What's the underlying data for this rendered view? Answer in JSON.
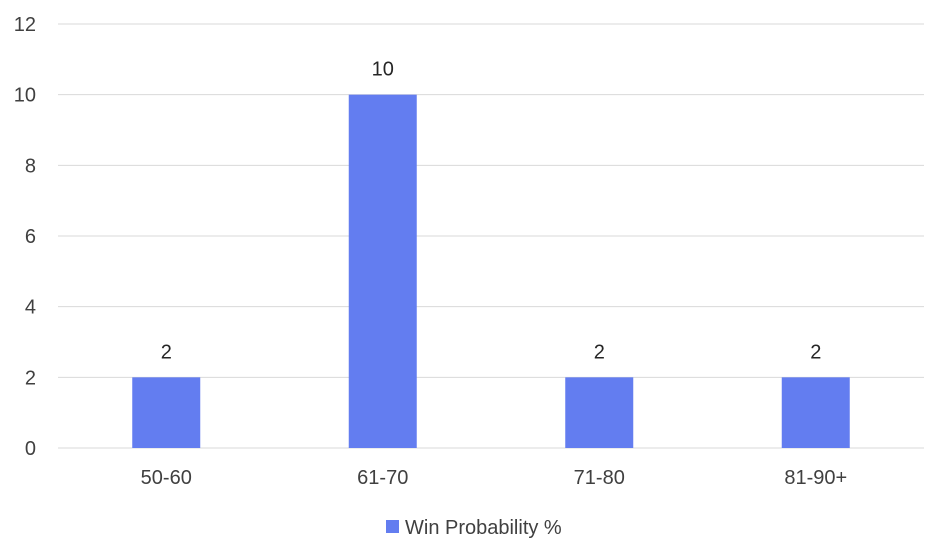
{
  "chart_data": {
    "type": "bar",
    "categories": [
      "50-60",
      "61-70",
      "71-80",
      "81-90+"
    ],
    "series": [
      {
        "name": "Win Probability %",
        "values": [
          2,
          10,
          2,
          2
        ]
      }
    ],
    "ylim": [
      0,
      12
    ],
    "yticks": [
      0,
      2,
      4,
      6,
      8,
      10,
      12
    ],
    "grid": true,
    "legend_position": "bottom",
    "data_labels": true,
    "colors": {
      "bar": "#637DF0",
      "grid": "#D9D9D9",
      "tick_text": "#404040",
      "label_text": "#262626"
    }
  }
}
